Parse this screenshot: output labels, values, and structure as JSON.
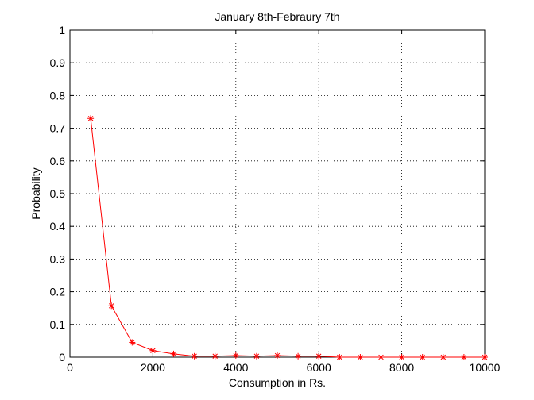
{
  "chart_data": {
    "type": "line",
    "title": "January 8th-Febraury 7th",
    "xlabel": "Consumption in Rs.",
    "ylabel": "Probability",
    "xlim": [
      0,
      10000
    ],
    "ylim": [
      0,
      1
    ],
    "xticks": [
      0,
      2000,
      4000,
      6000,
      8000,
      10000
    ],
    "yticks": [
      0,
      0.1,
      0.2,
      0.3,
      0.4,
      0.5,
      0.6,
      0.7,
      0.8,
      0.9,
      1
    ],
    "xtick_labels": [
      "0",
      "2000",
      "4000",
      "6000",
      "8000",
      "10000"
    ],
    "ytick_labels": [
      "0",
      "0.1",
      "0.2",
      "0.3",
      "0.4",
      "0.5",
      "0.6",
      "0.7",
      "0.8",
      "0.9",
      "1"
    ],
    "grid": true,
    "grid_style": "dotted",
    "series": [
      {
        "color": "#ff0000",
        "marker": "asterisk",
        "x": [
          500,
          1000,
          1500,
          2000,
          2500,
          3000,
          3500,
          4000,
          4500,
          5000,
          5500,
          6000,
          6500,
          7000,
          7500,
          8000,
          8500,
          9000,
          9500,
          10000
        ],
        "y": [
          0.73,
          0.157,
          0.045,
          0.02,
          0.01,
          0.003,
          0.003,
          0.005,
          0.003,
          0.005,
          0.003,
          0.003,
          0.0,
          0.0,
          0.0,
          0.0,
          0.0,
          0.0,
          0.0,
          0.0
        ]
      }
    ]
  }
}
